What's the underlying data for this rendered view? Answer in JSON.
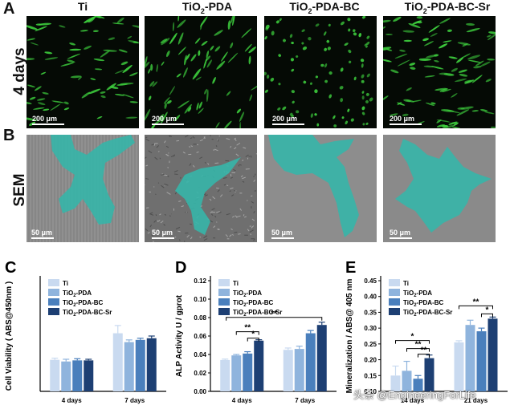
{
  "panels": {
    "A": {
      "letter": "A",
      "row_label": "4 days"
    },
    "B": {
      "letter": "B",
      "row_label": "SEM"
    },
    "columns": [
      {
        "main": "Ti",
        "sub": "",
        "rest": ""
      },
      {
        "main": "TiO",
        "sub": "2",
        "rest": "-PDA"
      },
      {
        "main": "TiO",
        "sub": "2",
        "rest": "-PDA-BC"
      },
      {
        "main": "TiO",
        "sub": "2",
        "rest": "-PDA-BC-Sr"
      }
    ],
    "scale_fluo": "200 μm",
    "scale_sem": "50 μm",
    "colors": {
      "cell_green": "#3ed13e",
      "sem_cyan": "#36b5a8"
    }
  },
  "chart_data": [
    {
      "panel": "C",
      "type": "bar",
      "ylabel": "Cell Viability ( ABS@450nm )",
      "categories": [
        "4 days",
        "7 days"
      ],
      "series": [
        {
          "name": "Ti",
          "color": "#c9daf0",
          "values": [
            0.57,
            1.05
          ],
          "errors": [
            0.03,
            0.14
          ]
        },
        {
          "name": "TiO2-PDA",
          "color": "#8fb4dd",
          "values": [
            0.54,
            0.89
          ],
          "errors": [
            0.04,
            0.04
          ]
        },
        {
          "name": "TiO2-PDA-BC",
          "color": "#4a7fbc",
          "values": [
            0.56,
            0.93
          ],
          "errors": [
            0.03,
            0.03
          ]
        },
        {
          "name": "TiO2-PDA-BC-Sr",
          "color": "#1d3f73",
          "values": [
            0.56,
            0.96
          ],
          "errors": [
            0.02,
            0.04
          ]
        }
      ],
      "legend_placement": "top-left",
      "ylim": [
        0,
        2
      ],
      "yticks": []
    },
    {
      "panel": "D",
      "type": "bar",
      "ylabel": "ALP Activity U / gprot",
      "categories": [
        "4 days",
        "7 days"
      ],
      "series": [
        {
          "name": "Ti",
          "color": "#c9daf0",
          "values": [
            0.034,
            0.045
          ],
          "errors": [
            0.001,
            0.002
          ]
        },
        {
          "name": "TiO2-PDA",
          "color": "#8fb4dd",
          "values": [
            0.039,
            0.046
          ],
          "errors": [
            0.001,
            0.003
          ]
        },
        {
          "name": "TiO2-PDA-BC",
          "color": "#4a7fbc",
          "values": [
            0.041,
            0.063
          ],
          "errors": [
            0.002,
            0.003
          ]
        },
        {
          "name": "TiO2-PDA-BC-Sr",
          "color": "#1d3f73",
          "values": [
            0.055,
            0.072
          ],
          "errors": [
            0.001,
            0.003
          ]
        }
      ],
      "legend_placement": "top-left",
      "ylim": [
        0,
        0.12
      ],
      "yticks": [
        "0.00",
        "0.02",
        "0.04",
        "0.06",
        "0.08",
        "0.10",
        "0.12"
      ],
      "annotations": [
        "**",
        "*",
        "**"
      ]
    },
    {
      "panel": "E",
      "type": "bar",
      "ylabel": "Mineralization / ABS@ 405 nm",
      "categories": [
        "14 days",
        "21 days"
      ],
      "series": [
        {
          "name": "Ti",
          "color": "#c9daf0",
          "values": [
            0.15,
            0.255
          ],
          "errors": [
            0.03,
            0.005
          ]
        },
        {
          "name": "TiO2-PDA",
          "color": "#8fb4dd",
          "values": [
            0.165,
            0.31
          ],
          "errors": [
            0.03,
            0.015
          ]
        },
        {
          "name": "TiO2-PDA-BC",
          "color": "#4a7fbc",
          "values": [
            0.14,
            0.29
          ],
          "errors": [
            0.01,
            0.01
          ]
        },
        {
          "name": "TiO2-PDA-BC-Sr",
          "color": "#1d3f73",
          "values": [
            0.205,
            0.33
          ],
          "errors": [
            0.01,
            0.005
          ]
        }
      ],
      "legend_placement": "top-left",
      "ylim": [
        0.1,
        0.45
      ],
      "yticks": [
        "0.10",
        "0.15",
        "0.20",
        "0.25",
        "0.30",
        "0.35",
        "0.40",
        "0.45"
      ],
      "annotations": [
        "**",
        "**",
        "*",
        "**",
        "*"
      ]
    }
  ],
  "watermark": "头条 @EngineeringForLife"
}
